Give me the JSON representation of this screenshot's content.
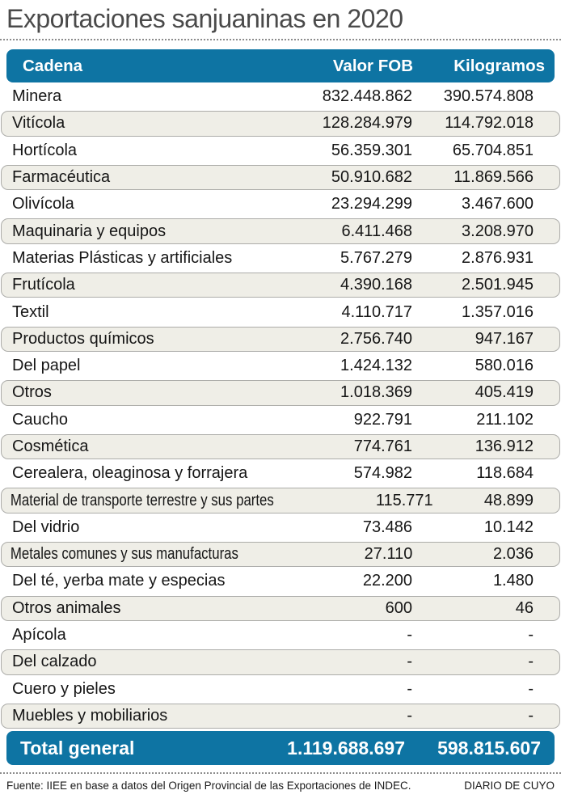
{
  "title": "Exportaciones sanjuaninas en 2020",
  "colors": {
    "accent": "#0E74A3",
    "alt_row_bg": "#EFEEE7",
    "alt_row_border": "#ACACA9",
    "title_text": "#4A4A4A"
  },
  "table": {
    "columns": [
      "Cadena",
      "Valor FOB",
      "Kilogramos"
    ],
    "rows": [
      {
        "cadena": "Minera",
        "valor_fob": "832.448.862",
        "kilogramos": "390.574.808"
      },
      {
        "cadena": "Vitícola",
        "valor_fob": "128.284.979",
        "kilogramos": "114.792.018"
      },
      {
        "cadena": "Hortícola",
        "valor_fob": "56.359.301",
        "kilogramos": "65.704.851"
      },
      {
        "cadena": "Farmacéutica",
        "valor_fob": "50.910.682",
        "kilogramos": "11.869.566"
      },
      {
        "cadena": "Olivícola",
        "valor_fob": "23.294.299",
        "kilogramos": "3.467.600"
      },
      {
        "cadena": "Maquinaria y equipos",
        "valor_fob": "6.411.468",
        "kilogramos": "3.208.970"
      },
      {
        "cadena": "Materias Plásticas y artificiales",
        "valor_fob": "5.767.279",
        "kilogramos": "2.876.931"
      },
      {
        "cadena": "Frutícola",
        "valor_fob": "4.390.168",
        "kilogramos": "2.501.945"
      },
      {
        "cadena": "Textil",
        "valor_fob": "4.110.717",
        "kilogramos": "1.357.016"
      },
      {
        "cadena": "Productos químicos",
        "valor_fob": "2.756.740",
        "kilogramos": "947.167"
      },
      {
        "cadena": "Del papel",
        "valor_fob": "1.424.132",
        "kilogramos": "580.016"
      },
      {
        "cadena": "Otros",
        "valor_fob": "1.018.369",
        "kilogramos": "405.419"
      },
      {
        "cadena": "Caucho",
        "valor_fob": "922.791",
        "kilogramos": "211.102"
      },
      {
        "cadena": "Cosmética",
        "valor_fob": "774.761",
        "kilogramos": "136.912"
      },
      {
        "cadena": "Cerealera, oleaginosa y forrajera",
        "valor_fob": "574.982",
        "kilogramos": "118.684"
      },
      {
        "cadena": "Material de transporte terrestre y sus partes",
        "valor_fob": "115.771",
        "kilogramos": "48.899"
      },
      {
        "cadena": "Del vidrio",
        "valor_fob": "73.486",
        "kilogramos": "10.142"
      },
      {
        "cadena": "Metales comunes y sus manufacturas",
        "valor_fob": "27.110",
        "kilogramos": "2.036"
      },
      {
        "cadena": "Del té, yerba mate y especias",
        "valor_fob": "22.200",
        "kilogramos": "1.480"
      },
      {
        "cadena": "Otros animales",
        "valor_fob": "600",
        "kilogramos": "46"
      },
      {
        "cadena": "Apícola",
        "valor_fob": "-",
        "kilogramos": "-"
      },
      {
        "cadena": "Del calzado",
        "valor_fob": "-",
        "kilogramos": "-"
      },
      {
        "cadena": "Cuero y pieles",
        "valor_fob": "-",
        "kilogramos": "-"
      },
      {
        "cadena": "Muebles y mobiliarios",
        "valor_fob": "-",
        "kilogramos": "-"
      }
    ],
    "total": {
      "cadena": "Total general",
      "valor_fob": "1.119.688.697",
      "kilogramos": "598.815.607"
    }
  },
  "footer": {
    "source": "Fuente: IIEE en base a datos del Origen Provincial de las Exportaciones de INDEC.",
    "credit": "DIARIO DE CUYO"
  },
  "chart_data": {
    "type": "table",
    "title": "Exportaciones sanjuaninas en 2020",
    "columns": [
      "Cadena",
      "Valor FOB",
      "Kilogramos"
    ],
    "categories": [
      "Minera",
      "Vitícola",
      "Hortícola",
      "Farmacéutica",
      "Olivícola",
      "Maquinaria y equipos",
      "Materias Plásticas y artificiales",
      "Frutícola",
      "Textil",
      "Productos químicos",
      "Del papel",
      "Otros",
      "Caucho",
      "Cosmética",
      "Cerealera, oleaginosa y forrajera",
      "Material de transporte terrestre y sus partes",
      "Del vidrio",
      "Metales comunes y sus manufacturas",
      "Del té, yerba mate y especias",
      "Otros animales",
      "Apícola",
      "Del calzado",
      "Cuero y pieles",
      "Muebles y mobiliarios"
    ],
    "series": [
      {
        "name": "Valor FOB",
        "values": [
          832448862,
          128284979,
          56359301,
          50910682,
          23294299,
          6411468,
          5767279,
          4390168,
          4110717,
          2756740,
          1424132,
          1018369,
          922791,
          774761,
          574982,
          115771,
          73486,
          27110,
          22200,
          600,
          null,
          null,
          null,
          null
        ]
      },
      {
        "name": "Kilogramos",
        "values": [
          390574808,
          114792018,
          65704851,
          11869566,
          3467600,
          3208970,
          2876931,
          2501945,
          1357016,
          947167,
          580016,
          405419,
          211102,
          136912,
          118684,
          48899,
          10142,
          2036,
          1480,
          46,
          null,
          null,
          null,
          null
        ]
      }
    ],
    "total": {
      "name": "Total general",
      "valor_fob": 1119688697,
      "kilogramos": 598815607
    }
  }
}
